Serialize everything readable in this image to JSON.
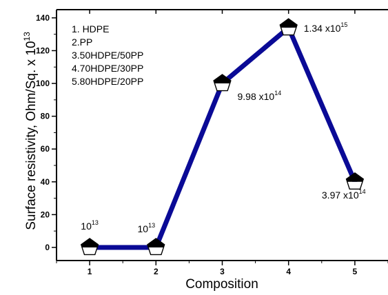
{
  "chart_data": {
    "type": "line",
    "xlabel": "Composition",
    "ylabel_base": "Surface resistivity, Ohm/Sq. x 10",
    "ylabel_exp": "13",
    "x": [
      1,
      2,
      3,
      4,
      5
    ],
    "y": [
      0,
      0,
      100,
      134,
      40
    ],
    "xlim": [
      0.5,
      5.5
    ],
    "ylim": [
      -8,
      145
    ],
    "xticks": [
      1,
      2,
      3,
      4,
      5
    ],
    "yticks": [
      0,
      20,
      40,
      60,
      80,
      100,
      120,
      140
    ],
    "line_color": "#0a0a96",
    "marker": "pentagon-half-filled",
    "legend": [
      "1. HDPE",
      "2.PP",
      "3.50HDPE/50PP",
      "4.70HDPE/30PP",
      "5.80HDPE/20PP"
    ],
    "annotations": [
      {
        "point": 1,
        "base": "10",
        "exp": "13"
      },
      {
        "point": 2,
        "base": "10",
        "exp": "13"
      },
      {
        "point": 3,
        "base": "9.98 x10",
        "exp": "14"
      },
      {
        "point": 4,
        "base": "1.34 x10",
        "exp": "15"
      },
      {
        "point": 5,
        "base": "3.97 x10",
        "exp": "14"
      }
    ]
  }
}
